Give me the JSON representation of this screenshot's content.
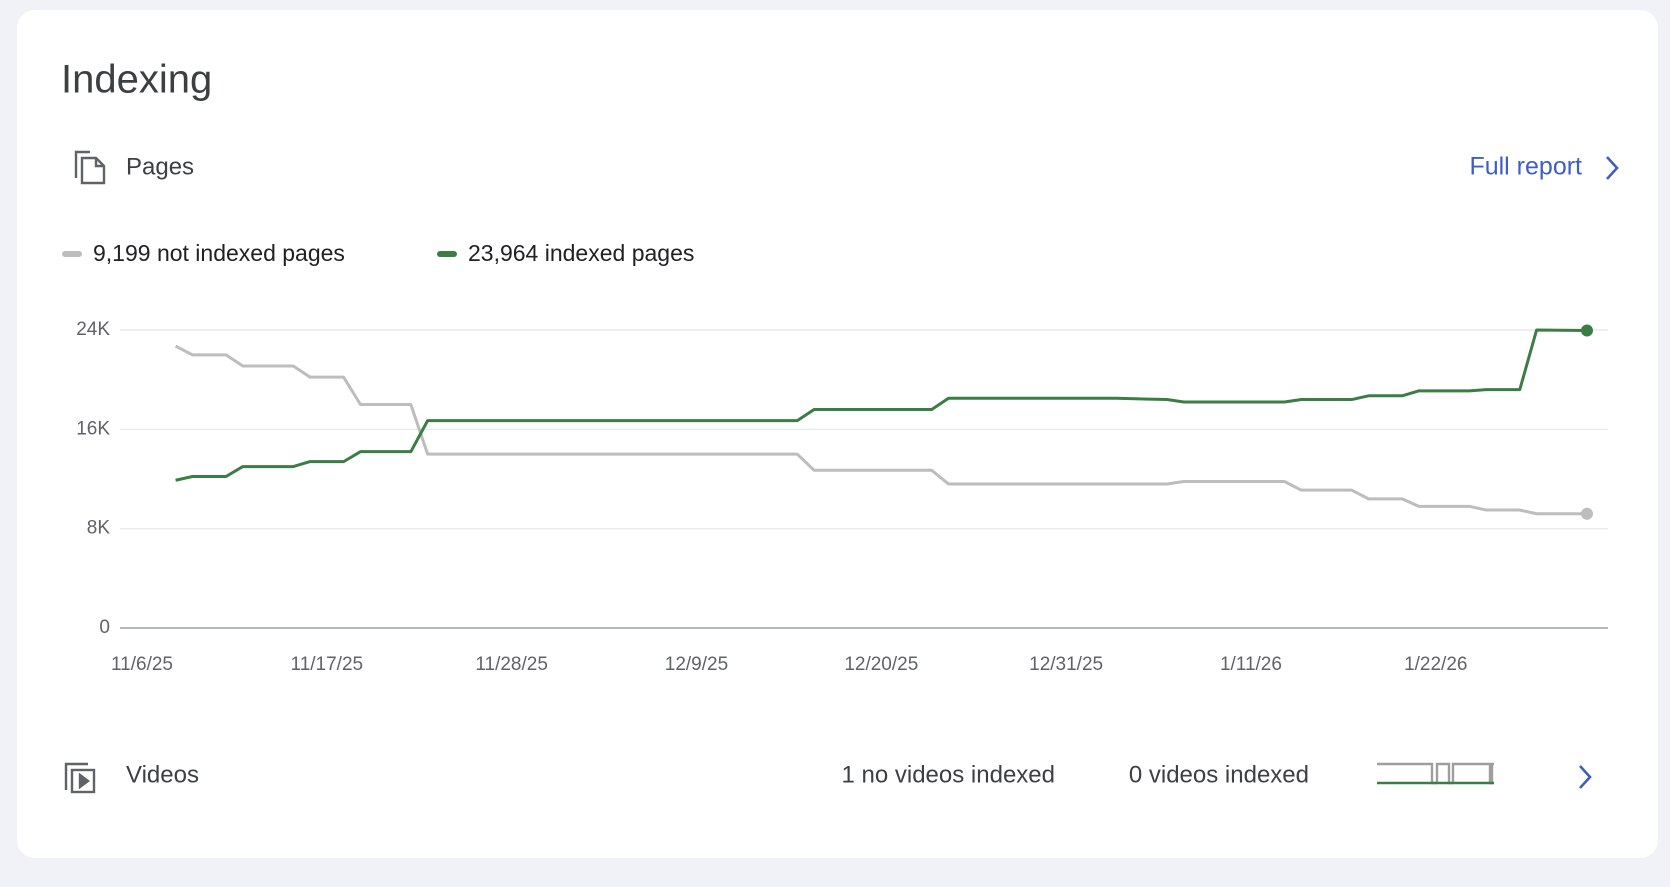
{
  "header": {
    "title": "Indexing"
  },
  "pages": {
    "label": "Pages",
    "link": "Full report"
  },
  "chart_data": {
    "type": "line",
    "x": [
      "11/8/25",
      "11/9/25",
      "11/11/25",
      "11/12/25",
      "11/15/25",
      "11/16/25",
      "11/18/25",
      "11/19/25",
      "11/22/25",
      "11/23/25",
      "12/15/25",
      "12/16/25",
      "12/23/25",
      "12/24/25",
      "1/3/26",
      "1/6/26",
      "1/7/26",
      "1/13/26",
      "1/14/26",
      "1/17/26",
      "1/18/26",
      "1/20/26",
      "1/21/26",
      "1/24/26",
      "1/25/26",
      "1/27/26",
      "1/28/26",
      "1/31/26"
    ],
    "series": [
      {
        "name": "9,199 not indexed pages",
        "color": "#bdbdbd",
        "values": [
          22700,
          22000,
          22000,
          21100,
          21100,
          20200,
          20200,
          18000,
          18000,
          14000,
          14000,
          12700,
          12700,
          11600,
          11600,
          11600,
          11800,
          11800,
          11100,
          11100,
          10400,
          10400,
          9800,
          9800,
          9500,
          9500,
          9200,
          9199
        ]
      },
      {
        "name": "23,964 indexed pages",
        "color": "#3b7d45",
        "values": [
          11900,
          12200,
          12200,
          13000,
          13000,
          13400,
          13400,
          14200,
          14200,
          16700,
          16700,
          17600,
          17600,
          18500,
          18500,
          18400,
          18200,
          18200,
          18400,
          18400,
          18700,
          18700,
          19100,
          19100,
          19200,
          19200,
          24000,
          23964
        ]
      }
    ],
    "xlim": [
      "11/6/25",
      "1/31/26"
    ],
    "xticks": [
      "11/6/25",
      "11/17/25",
      "11/28/25",
      "12/9/25",
      "12/20/25",
      "12/31/25",
      "1/11/26",
      "1/22/26"
    ],
    "ylim": [
      0,
      24000
    ],
    "yticks": [
      0,
      {
        "value": 8000,
        "label": "8K"
      },
      {
        "value": 16000,
        "label": "16K"
      },
      {
        "value": 24000,
        "label": "24K"
      }
    ],
    "grid": true
  },
  "videos": {
    "label": "Videos",
    "not_indexed": "1 no videos indexed",
    "indexed": "0 videos indexed"
  }
}
